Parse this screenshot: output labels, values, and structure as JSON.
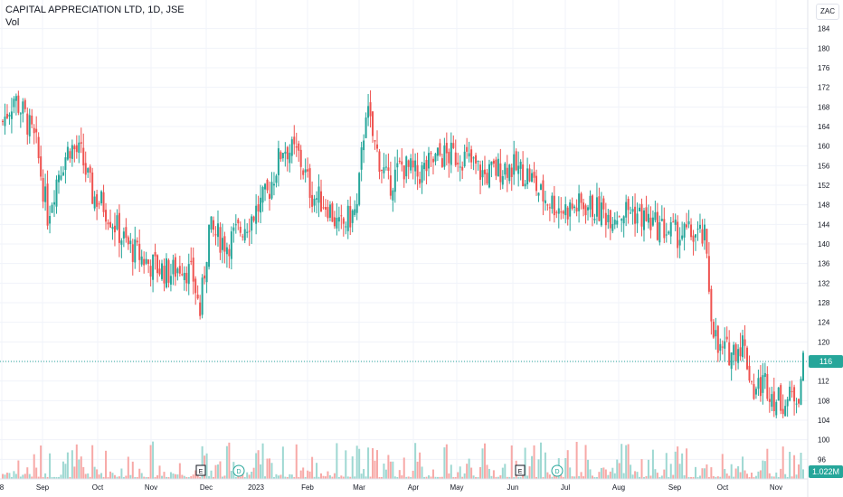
{
  "legend": {
    "title": "CAPITAL APPRECIATION LTD, 1D, JSE",
    "volume_label": "Vol"
  },
  "currency": "ZAC",
  "colors": {
    "up": "#26a69a",
    "down": "#ef5350",
    "up_vol": "#9ed8d2",
    "down_vol": "#f7a9a7",
    "last_price": "#26a69a"
  },
  "last_price": {
    "value": 116,
    "label": "116"
  },
  "volume_last": {
    "label": "1.022M"
  },
  "events": [
    {
      "type": "earnings",
      "label": "E",
      "date": "Dec"
    },
    {
      "type": "dividend",
      "label": "D",
      "date": "Dec"
    },
    {
      "type": "earnings",
      "label": "E",
      "date": "Jun"
    },
    {
      "type": "dividend",
      "label": "D",
      "date": "Jun"
    }
  ],
  "chart_data": {
    "type": "candlestick",
    "title": "CAPITAL APPRECIATION LTD, 1D, JSE",
    "y_ticks": [
      96,
      100,
      104,
      108,
      112,
      116,
      120,
      124,
      128,
      132,
      136,
      140,
      144,
      148,
      152,
      156,
      160,
      164,
      168,
      172,
      176,
      180,
      184
    ],
    "y_range": [
      92,
      188
    ],
    "x_ticks": [
      "8",
      "Sep",
      "Oct",
      "Nov",
      "Dec",
      "2023",
      "Feb",
      "Mar",
      "Apr",
      "May",
      "Jun",
      "Jul",
      "Aug",
      "Sep",
      "Oct",
      "Nov"
    ],
    "price_anchors": [
      [
        0,
        165
      ],
      [
        5,
        170
      ],
      [
        10,
        166
      ],
      [
        15,
        160
      ],
      [
        20,
        146
      ],
      [
        25,
        155
      ],
      [
        30,
        160
      ],
      [
        35,
        158
      ],
      [
        40,
        150
      ],
      [
        45,
        148
      ],
      [
        50,
        144
      ],
      [
        55,
        140
      ],
      [
        60,
        138
      ],
      [
        65,
        136
      ],
      [
        70,
        135
      ],
      [
        75,
        134
      ],
      [
        80,
        136
      ],
      [
        85,
        133
      ],
      [
        88,
        126
      ],
      [
        92,
        143
      ],
      [
        100,
        140
      ],
      [
        110,
        145
      ],
      [
        118,
        150
      ],
      [
        125,
        160
      ],
      [
        132,
        158
      ],
      [
        138,
        150
      ],
      [
        145,
        148
      ],
      [
        150,
        143
      ],
      [
        158,
        147
      ],
      [
        162,
        168
      ],
      [
        166,
        160
      ],
      [
        172,
        152
      ],
      [
        178,
        156
      ],
      [
        185,
        154
      ],
      [
        195,
        158
      ],
      [
        205,
        158
      ],
      [
        215,
        154
      ],
      [
        225,
        156
      ],
      [
        235,
        154
      ],
      [
        240,
        150
      ],
      [
        250,
        147
      ],
      [
        260,
        148
      ],
      [
        270,
        146
      ],
      [
        280,
        147
      ],
      [
        290,
        144
      ],
      [
        300,
        142
      ],
      [
        308,
        142
      ],
      [
        313,
        141
      ],
      [
        316,
        126
      ],
      [
        319,
        118
      ],
      [
        325,
        118
      ],
      [
        330,
        120
      ],
      [
        335,
        110
      ],
      [
        340,
        112
      ],
      [
        345,
        108
      ],
      [
        350,
        108
      ],
      [
        355,
        110
      ],
      [
        357,
        116
      ]
    ]
  }
}
